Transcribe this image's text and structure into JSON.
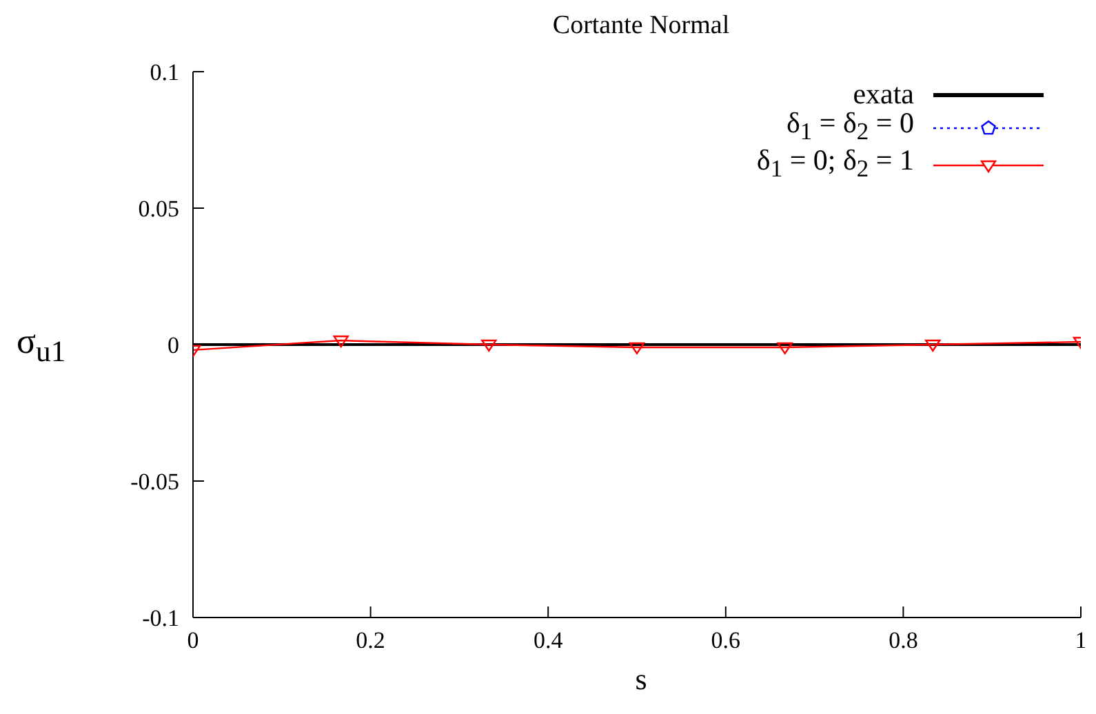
{
  "chart_data": {
    "type": "line",
    "title": "Cortante Normal",
    "xlabel": "s",
    "ylabel": "σ$_{u1}$",
    "xlim": [
      0,
      1
    ],
    "xticks": [
      0,
      0.2,
      0.4,
      0.6,
      0.8,
      1
    ],
    "ylim": [
      -0.1,
      0.1
    ],
    "yticks": [
      -0.1,
      -0.05,
      0,
      0.05,
      0.1
    ],
    "grid": false,
    "legend": "top right",
    "series": [
      {
        "name": "exata",
        "color": "#000000",
        "x": [
          0,
          1
        ],
        "values": [
          0,
          0
        ],
        "marker": "none",
        "line_style": "solid"
      },
      {
        "name": "δ$_{1}$ = δ$_{2}$ = 0",
        "color": "#0000ff",
        "marker": "pentagon",
        "line_style": "dotted"
      },
      {
        "name": "δ$_{1}$ = 0; δ$_{2}$ = 1",
        "color": "#ff0000",
        "x": [
          0,
          0.1667,
          0.3333,
          0.5,
          0.6667,
          0.8333,
          1
        ],
        "values": [
          -0.002,
          0.0015,
          0,
          -0.001,
          -0.001,
          0,
          0.001
        ],
        "marker": "triangle",
        "line_style": "solid"
      }
    ]
  }
}
